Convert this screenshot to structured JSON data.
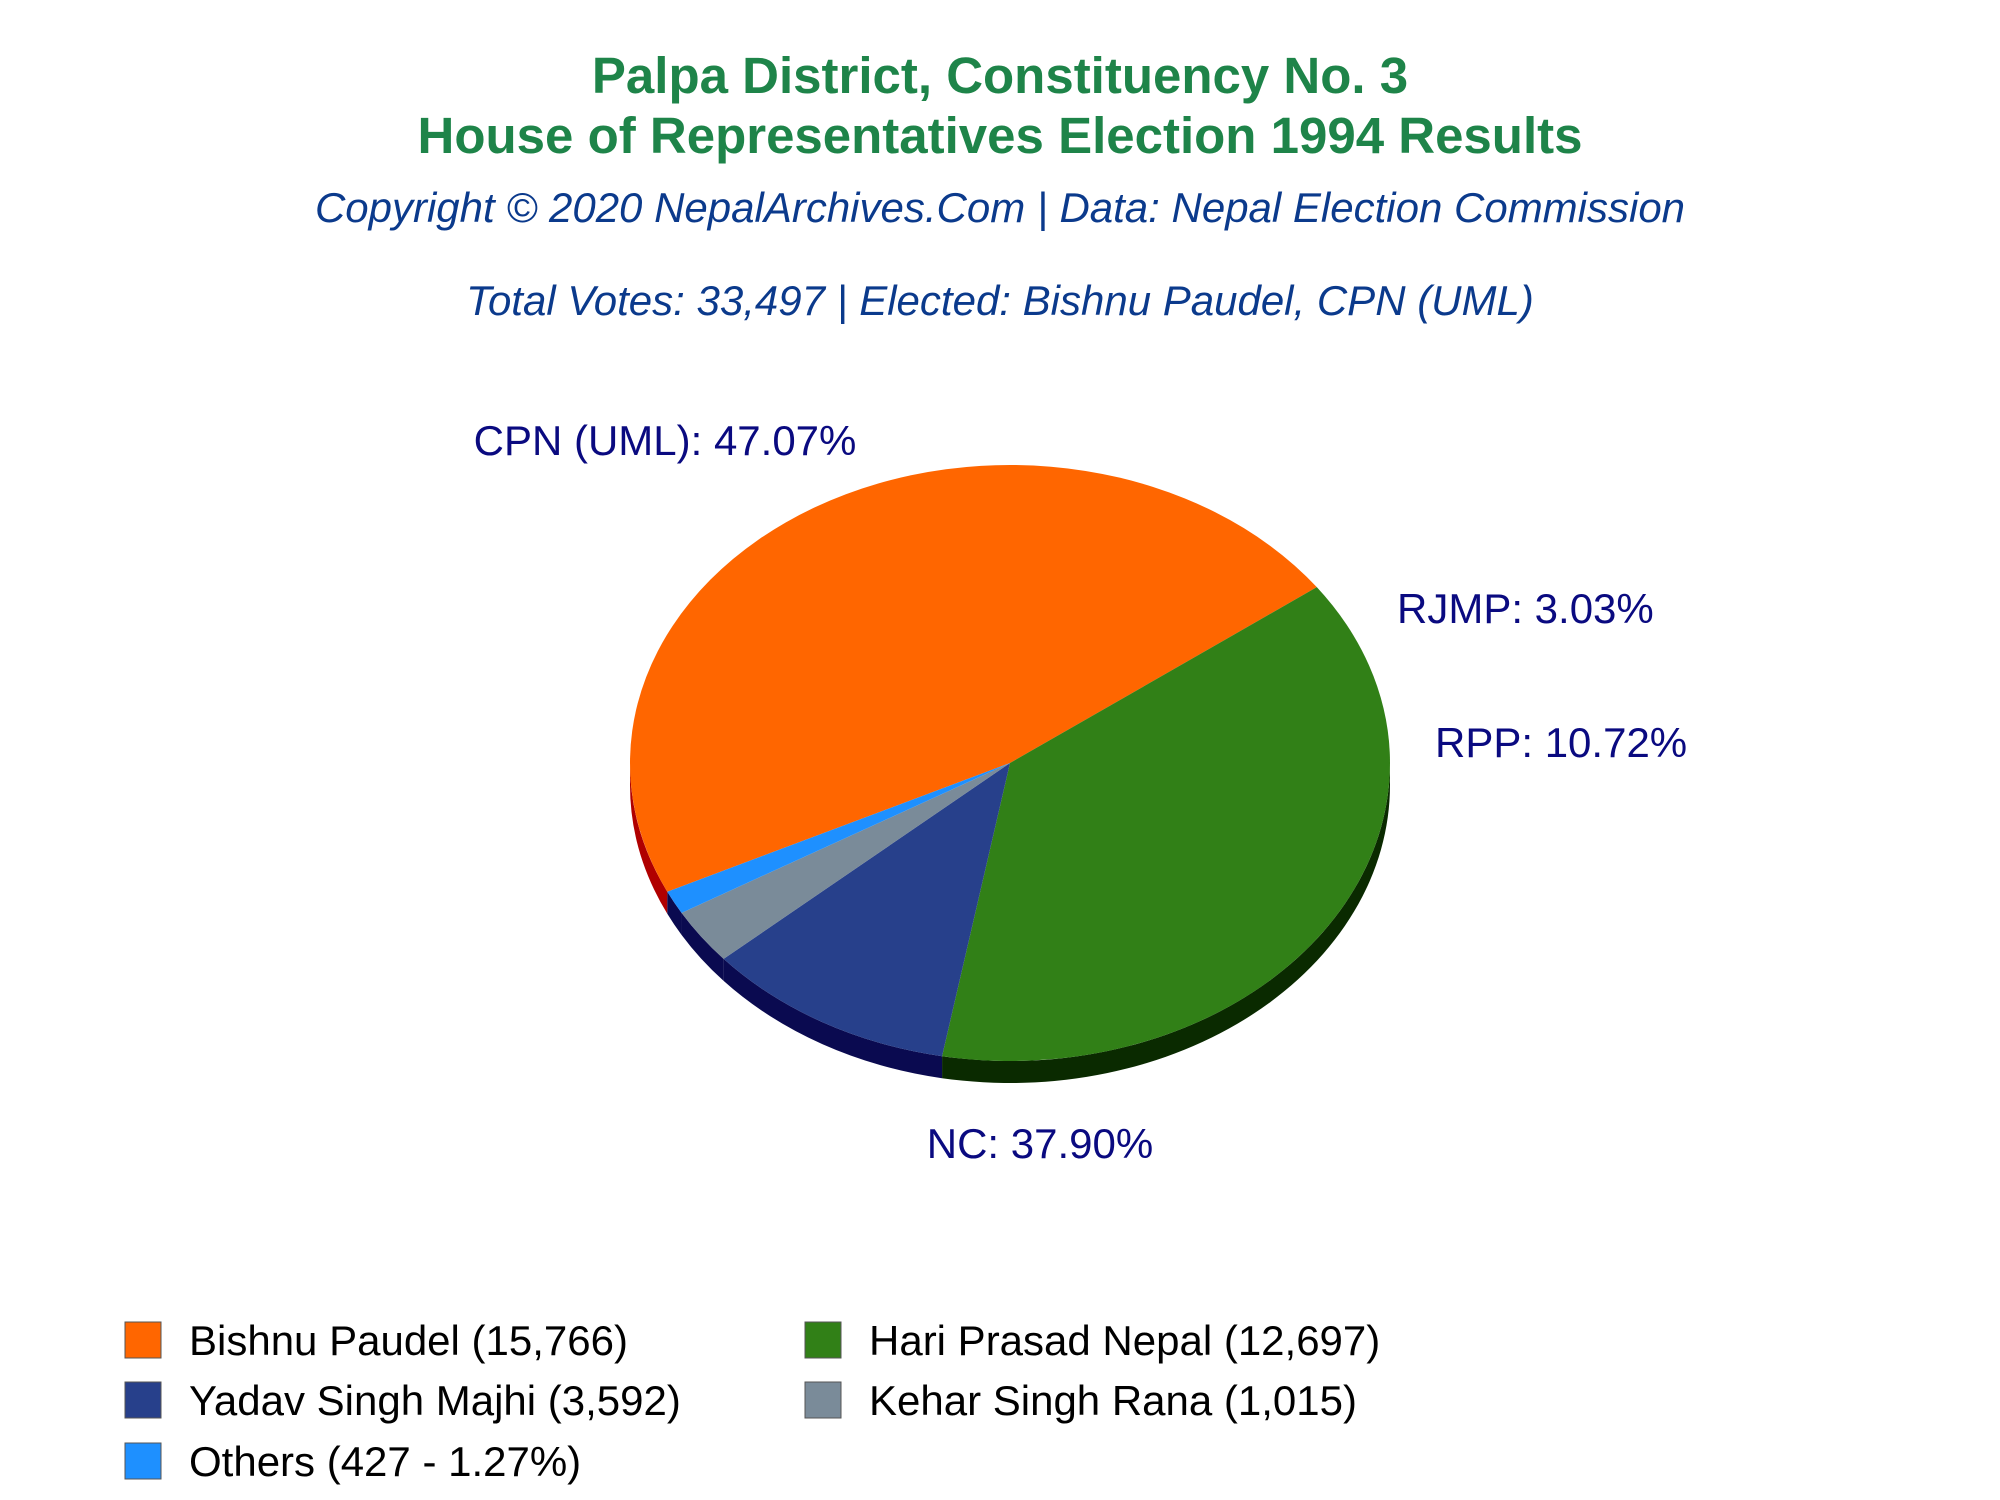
{
  "colors": {
    "title": "#1e8449",
    "subtitle": "#0b3a8c",
    "slice_label": "#0a0a80",
    "depth_orange": "#b00000",
    "depth_green": "#0a2a00",
    "depth_blue": "#0a0a50"
  },
  "chart_data": {
    "type": "pie",
    "title_line1": "Palpa District, Constituency No. 3",
    "title_line2": "House of Representatives Election 1994 Results",
    "copyright": "Copyright © 2020 NepalArchives.Com | Data: Nepal Election Commission",
    "summary": "Total Votes: 33,497 | Elected: Bishnu Paudel, CPN (UML)",
    "slices": [
      {
        "candidate": "Bishnu Paudel",
        "party": "CPN (UML)",
        "votes": 15766,
        "percent": 47.07,
        "color": "#ff6600",
        "slice_label": "CPN (UML): 47.07%",
        "legend": "Bishnu Paudel (15,766)"
      },
      {
        "candidate": "Hari Prasad Nepal",
        "party": "NC",
        "votes": 12697,
        "percent": 37.9,
        "color": "#318017",
        "slice_label": "NC: 37.90%",
        "legend": "Hari Prasad Nepal (12,697)"
      },
      {
        "candidate": "Yadav Singh Majhi",
        "party": "RPP",
        "votes": 3592,
        "percent": 10.72,
        "color": "#27408b",
        "slice_label": "RPP: 10.72%",
        "legend": "Yadav Singh Majhi (3,592)"
      },
      {
        "candidate": "Kehar Singh Rana",
        "party": "RJMP",
        "votes": 1015,
        "percent": 3.03,
        "color": "#7a8b99",
        "slice_label": "RJMP: 3.03%",
        "legend": "Kehar Singh Rana (1,015)"
      },
      {
        "candidate": "Others",
        "party": "",
        "votes": 427,
        "percent": 1.27,
        "color": "#1e90ff",
        "slice_label": "",
        "legend": "Others (427 - 1.27%)"
      }
    ]
  }
}
